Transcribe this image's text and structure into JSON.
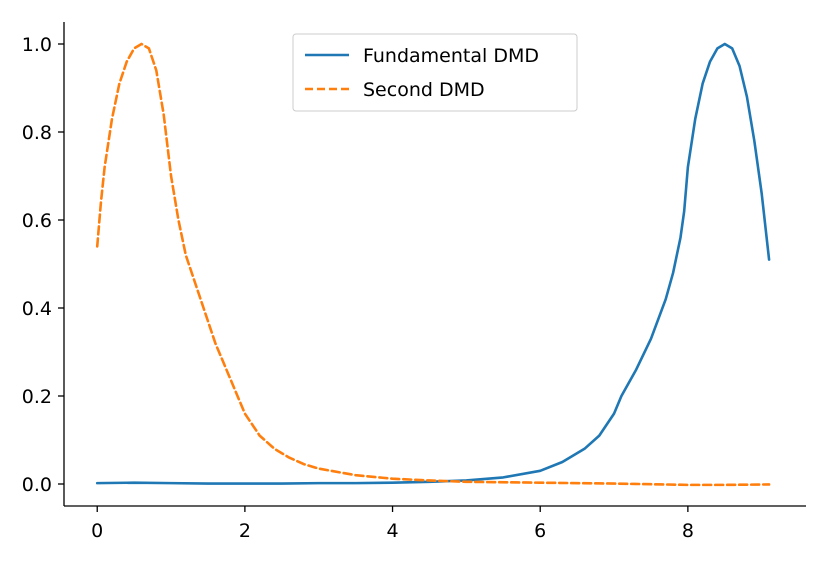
{
  "chart_data": {
    "type": "line",
    "title": "",
    "xlabel": "",
    "ylabel": "",
    "xlim": [
      -0.45,
      9.6
    ],
    "ylim": [
      -0.05,
      1.05
    ],
    "xticks": [
      0,
      2,
      4,
      6,
      8
    ],
    "yticks": [
      0.0,
      0.2,
      0.4,
      0.6,
      0.8,
      1.0
    ],
    "xtick_labels": [
      "0",
      "2",
      "4",
      "6",
      "8"
    ],
    "ytick_labels": [
      "0.0",
      "0.2",
      "0.4",
      "0.6",
      "0.8",
      "1.0"
    ],
    "grid": false,
    "legend_position": "top-center",
    "series": [
      {
        "name": "Fundamental DMD",
        "color": "#1f77b4",
        "style": "solid",
        "x": [
          0,
          0.5,
          1,
          1.5,
          2,
          2.5,
          3,
          3.5,
          4,
          4.5,
          5,
          5.5,
          6,
          6.3,
          6.6,
          6.8,
          7.0,
          7.1,
          7.3,
          7.5,
          7.7,
          7.8,
          7.9,
          7.95,
          8.0,
          8.1,
          8.2,
          8.3,
          8.4,
          8.5,
          8.6,
          8.7,
          8.8,
          8.9,
          9.0,
          9.1
        ],
        "y": [
          0.002,
          0.003,
          0.002,
          0.001,
          0.001,
          0.001,
          0.002,
          0.002,
          0.003,
          0.005,
          0.008,
          0.015,
          0.03,
          0.05,
          0.08,
          0.11,
          0.16,
          0.2,
          0.26,
          0.33,
          0.42,
          0.48,
          0.56,
          0.62,
          0.72,
          0.83,
          0.91,
          0.96,
          0.99,
          1.0,
          0.99,
          0.95,
          0.88,
          0.78,
          0.66,
          0.51
        ]
      },
      {
        "name": "Second DMD",
        "color": "#ff7f0e",
        "style": "dashed",
        "x": [
          0,
          0.05,
          0.1,
          0.2,
          0.3,
          0.4,
          0.5,
          0.6,
          0.7,
          0.8,
          0.9,
          1.0,
          1.1,
          1.2,
          1.4,
          1.6,
          1.8,
          2.0,
          2.2,
          2.4,
          2.6,
          2.8,
          3.0,
          3.5,
          4.0,
          4.5,
          5.0,
          6.0,
          7.0,
          8.0,
          8.5,
          9.1
        ],
        "y": [
          0.54,
          0.64,
          0.72,
          0.83,
          0.91,
          0.96,
          0.99,
          1.0,
          0.99,
          0.94,
          0.84,
          0.7,
          0.6,
          0.52,
          0.42,
          0.32,
          0.24,
          0.16,
          0.11,
          0.08,
          0.06,
          0.045,
          0.035,
          0.02,
          0.012,
          0.008,
          0.005,
          0.003,
          0.001,
          -0.002,
          -0.002,
          -0.001
        ]
      }
    ]
  }
}
